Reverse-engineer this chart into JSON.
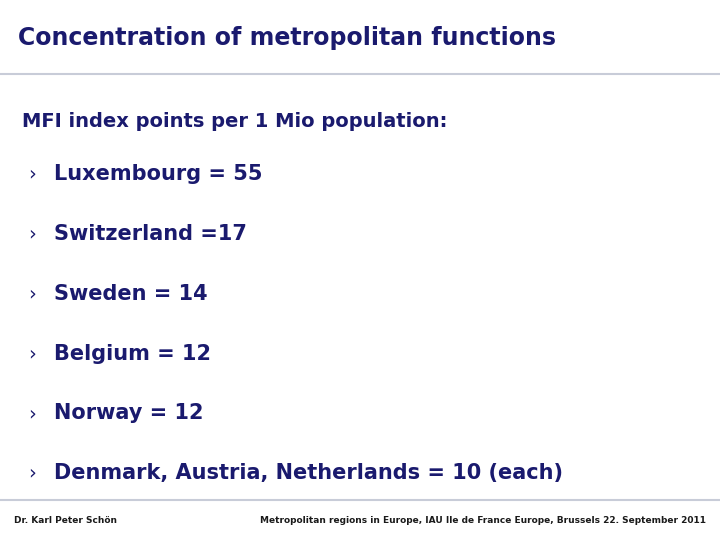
{
  "title": "Concentration of metropolitan functions",
  "title_color": "#1a1a6e",
  "title_bg": "#ffffff",
  "content_bg": "#fdf5c0",
  "header_subtitle": "MFI index points per 1 Mio population:",
  "bullet_char": "›",
  "bullet_items": [
    "Luxembourg = 55",
    "Switzerland =17",
    "Sweden = 14",
    "Belgium = 12",
    "Norway = 12",
    "Denmark, Austria, Netherlands = 10 (each)"
  ],
  "text_color": "#1a1a6e",
  "footer_left": "Dr. Karl Peter Schön",
  "footer_right": "Metropolitan regions in Europe, IAU Ile de France Europe, Brussels 22. September 2011",
  "footer_color": "#1a1a1a",
  "footer_bg": "#ffffff",
  "border_color": "#c8ccd8",
  "title_fontsize": 17,
  "subtitle_fontsize": 14,
  "bullet_fontsize": 15,
  "footer_fontsize": 6.5,
  "fig_width": 7.2,
  "fig_height": 5.4,
  "dpi": 100
}
